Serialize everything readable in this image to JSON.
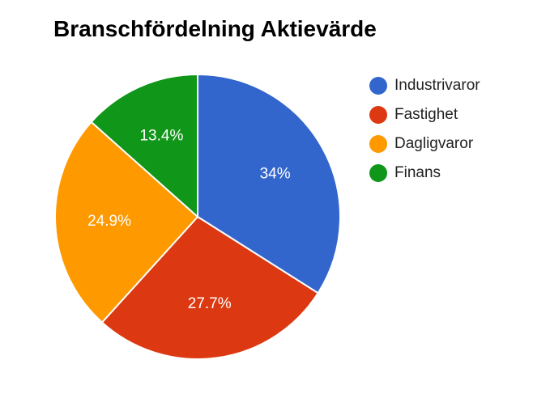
{
  "chart_data": {
    "type": "pie",
    "title": "Branschfördelning Aktievärde",
    "categories": [
      "Industrivaror",
      "Fastighet",
      "Dagligvaror",
      "Finans"
    ],
    "values": [
      34.0,
      27.7,
      24.9,
      13.4
    ],
    "labels": [
      "34%",
      "27.7%",
      "24.9%",
      "13.4%"
    ],
    "colors": [
      "#3366cc",
      "#dc3912",
      "#ff9900",
      "#109618"
    ],
    "legend": "right",
    "start_angle": "12 o'clock",
    "direction": "clockwise"
  }
}
